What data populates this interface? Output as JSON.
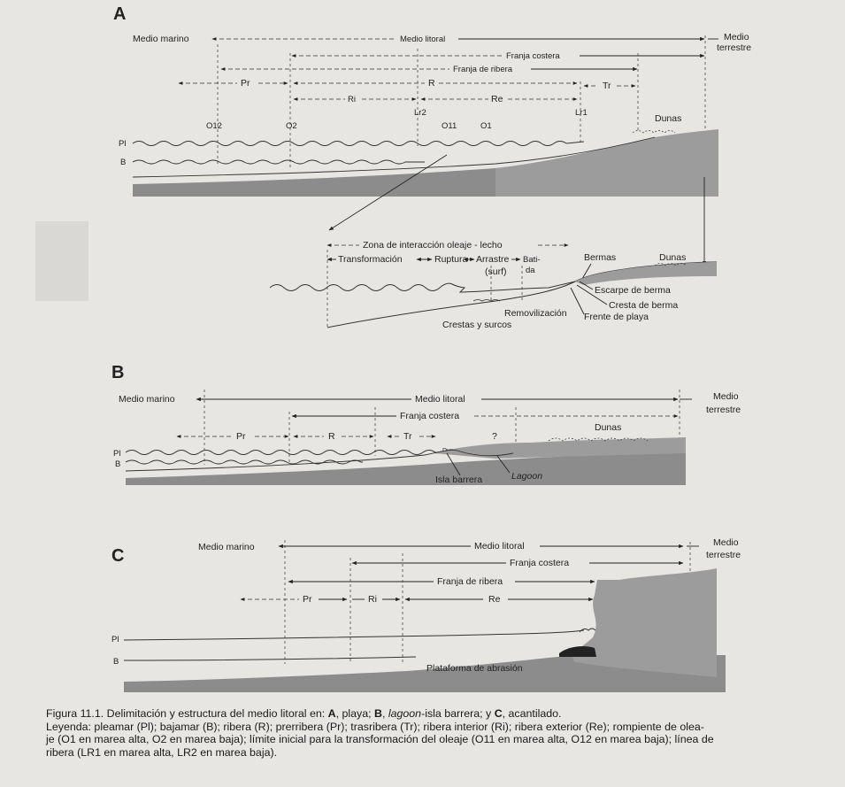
{
  "panels": {
    "A": {
      "letter": "A",
      "medio_marino": "Medio marino",
      "medio_litoral": "Medio litoral",
      "medio_terrestre_1": "Medio",
      "medio_terrestre_2": "terrestre",
      "franja_costera": "Franja costera",
      "franja_ribera": "Franja de ribera",
      "pr": "Pr",
      "r": "R",
      "tr": "Tr",
      "ri": "Ri",
      "re": "Re",
      "lr2": "Lr2",
      "lr1": "Lr1",
      "o12": "O12",
      "o2": "O2",
      "o11": "O11",
      "o1": "O1",
      "dunas": "Dunas",
      "pl": "Pl",
      "b": "B"
    },
    "detail": {
      "zona": "Zona de interacción oleaje - lecho",
      "transformacion": "Transformación",
      "ruptura": "Ruptura",
      "arrastre": "Arrastre",
      "surf": "(surf)",
      "batida_1": "Bati-",
      "batida_2": "da",
      "bermas": "Bermas",
      "dunas": "Dunas",
      "escarpe": "Escarpe de berma",
      "cresta": "Cresta de berma",
      "removilizacion": "Removilización",
      "frente": "Frente de playa",
      "crestas_surcos": "Crestas y surcos"
    },
    "B": {
      "letter": "B",
      "medio_marino": "Medio marino",
      "medio_litoral": "Medio litoral",
      "medio_terrestre_1": "Medio",
      "medio_terrestre_2": "terrestre",
      "franja_costera": "Franja costera",
      "pr": "Pr",
      "r": "R",
      "tr": "Tr",
      "q": "?",
      "dunas": "Dunas",
      "dunas_small": "Dunas",
      "isla": "Isla barrera",
      "lagoon": "Lagoon",
      "pl": "Pl",
      "b": "B"
    },
    "C": {
      "letter": "C",
      "medio_marino": "Medio marino",
      "medio_litoral": "Medio litoral",
      "medio_terrestre_1": "Medio",
      "medio_terrestre_2": "terrestre",
      "franja_costera": "Franja costera",
      "franja_ribera": "Franja de ribera",
      "pr": "Pr",
      "ri": "Ri",
      "re": "Re",
      "plataforma": "Plataforma de abrasión",
      "pl": "Pl",
      "b": "B"
    }
  },
  "caption": {
    "line1_a": "Figura 11.1. Delimitación y estructura del medio litoral en: ",
    "line1_A": "A",
    "line1_b": ", playa; ",
    "line1_B": "B",
    "line1_c": ", ",
    "line1_lagoon": "lagoon",
    "line1_d": "-isla barrera; y ",
    "line1_C": "C",
    "line1_e": ", acantilado.",
    "leyenda_1": "Leyenda: pleamar (Pl); bajamar (B); ribera (R); prerribera (Pr); trasribera (Tr); ribera interior (Ri); ribera exterior (Re); rompiente de olea-",
    "leyenda_2": "je (O1 en marea alta, O2 en marea baja); límite inicial para la transformación del oleaje (O11 en marea alta, O12 en marea baja); línea de",
    "leyenda_3": "ribera (LR1 en marea alta, LR2 en marea baja)."
  }
}
